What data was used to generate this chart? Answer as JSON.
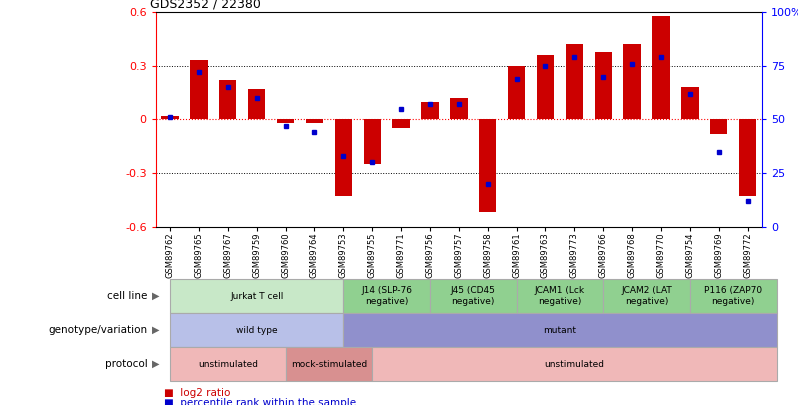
{
  "title": "GDS2352 / 22380",
  "samples": [
    "GSM89762",
    "GSM89765",
    "GSM89767",
    "GSM89759",
    "GSM89760",
    "GSM89764",
    "GSM89753",
    "GSM89755",
    "GSM89771",
    "GSM89756",
    "GSM89757",
    "GSM89758",
    "GSM89761",
    "GSM89763",
    "GSM89773",
    "GSM89766",
    "GSM89768",
    "GSM89770",
    "GSM89754",
    "GSM89769",
    "GSM89772"
  ],
  "log2_ratio": [
    0.02,
    0.33,
    0.22,
    0.17,
    -0.02,
    -0.02,
    -0.43,
    -0.25,
    -0.05,
    0.1,
    0.12,
    -0.52,
    0.3,
    0.36,
    0.42,
    0.38,
    0.42,
    0.58,
    0.18,
    -0.08,
    -0.43
  ],
  "percentile": [
    51,
    72,
    65,
    60,
    47,
    44,
    33,
    30,
    55,
    57,
    57,
    20,
    69,
    75,
    79,
    70,
    76,
    79,
    62,
    35,
    12
  ],
  "cell_line_groups": [
    {
      "label": "Jurkat T cell",
      "start": 0,
      "end": 6,
      "color": "#c8e8c8"
    },
    {
      "label": "J14 (SLP-76\nnegative)",
      "start": 6,
      "end": 9,
      "color": "#90d090"
    },
    {
      "label": "J45 (CD45\nnegative)",
      "start": 9,
      "end": 12,
      "color": "#90d090"
    },
    {
      "label": "JCAM1 (Lck\nnegative)",
      "start": 12,
      "end": 15,
      "color": "#90d090"
    },
    {
      "label": "JCAM2 (LAT\nnegative)",
      "start": 15,
      "end": 18,
      "color": "#90d090"
    },
    {
      "label": "P116 (ZAP70\nnegative)",
      "start": 18,
      "end": 21,
      "color": "#90d090"
    }
  ],
  "genotype_groups": [
    {
      "label": "wild type",
      "start": 0,
      "end": 6,
      "color": "#b8c0e8"
    },
    {
      "label": "mutant",
      "start": 6,
      "end": 21,
      "color": "#9090cc"
    }
  ],
  "protocol_groups": [
    {
      "label": "unstimulated",
      "start": 0,
      "end": 4,
      "color": "#f0b8b8"
    },
    {
      "label": "mock-stimulated",
      "start": 4,
      "end": 7,
      "color": "#d89090"
    },
    {
      "label": "unstimulated",
      "start": 7,
      "end": 21,
      "color": "#f0b8b8"
    }
  ],
  "bar_color": "#cc0000",
  "dot_color": "#0000cc",
  "ylim": [
    -0.6,
    0.6
  ],
  "y2lim": [
    0,
    100
  ],
  "yticks": [
    -0.6,
    -0.3,
    0.0,
    0.3,
    0.6
  ],
  "ytick_labels": [
    "-0.6",
    "-0.3",
    "0",
    "0.3",
    "0.6"
  ],
  "y2ticks": [
    0,
    25,
    50,
    75,
    100
  ],
  "y2ticklabels": [
    "0",
    "25",
    "50",
    "75",
    "100%"
  ],
  "hlines_dotted": [
    -0.3,
    0.3
  ],
  "hline_red": 0.0,
  "legend_items": [
    {
      "label": "log2 ratio",
      "color": "#cc0000"
    },
    {
      "label": "percentile rank within the sample",
      "color": "#0000cc"
    }
  ],
  "row_labels": [
    "cell line",
    "genotype/variation",
    "protocol"
  ]
}
